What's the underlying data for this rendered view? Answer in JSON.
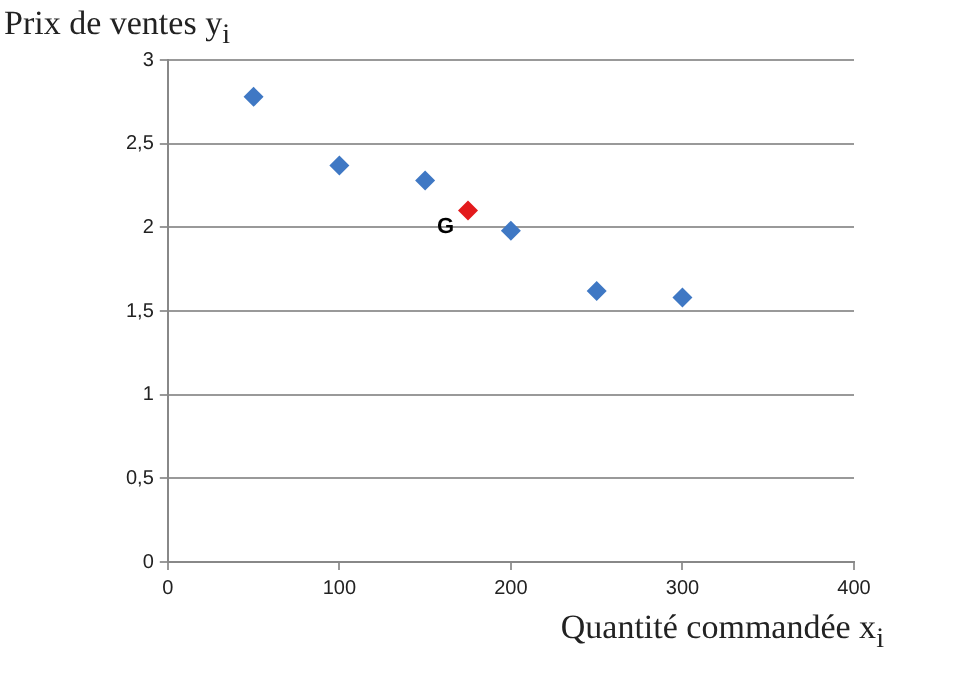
{
  "chart_data": {
    "type": "scatter",
    "xlabel": "Quantité commandée x$_{i}$",
    "ylabel": "Prix de ventes y$_{i}$",
    "series": [
      {
        "color": "#3f78c4",
        "x": [
          50,
          100,
          150,
          200,
          250,
          300
        ],
        "values": [
          2.78,
          2.37,
          2.28,
          1.98,
          1.62,
          1.58
        ]
      },
      {
        "color": "#e31a1c",
        "x": [
          175
        ],
        "values": [
          2.1
        ]
      }
    ],
    "xlim": [
      0,
      400
    ],
    "xticks": [
      0,
      100,
      200,
      300,
      400
    ],
    "ylim": [
      0,
      3
    ],
    "yticks": [
      {
        "value": 0,
        "label": "0"
      },
      {
        "value": 0.5,
        "label": "0,5"
      },
      {
        "value": 1,
        "label": "1"
      },
      {
        "value": 1.5,
        "label": "1,5"
      },
      {
        "value": 2,
        "label": "2"
      },
      {
        "value": 2.5,
        "label": "2,5"
      },
      {
        "value": 3,
        "label": "3"
      }
    ],
    "grid": "y",
    "legend": false,
    "marker": "diamond",
    "annotations": [
      {
        "text": "G",
        "x": 175,
        "y": 2.1
      }
    ]
  }
}
